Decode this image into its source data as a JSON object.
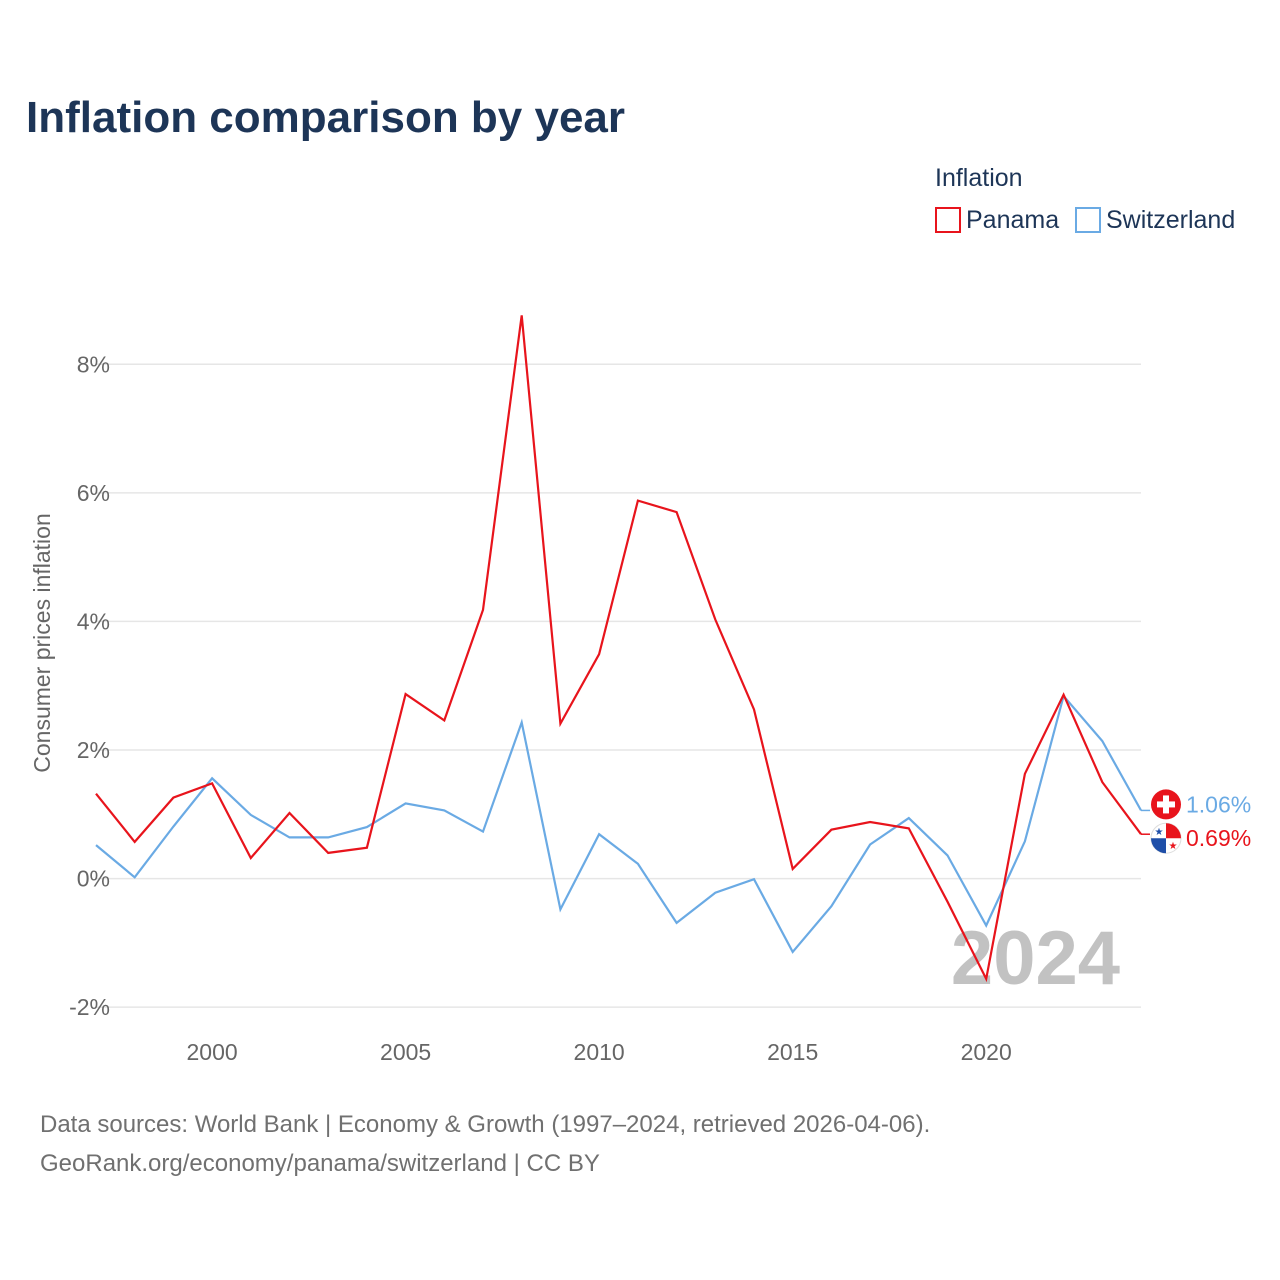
{
  "chart_data": {
    "type": "line",
    "title": "Inflation comparison by year",
    "legend": {
      "title": "Inflation",
      "position": "top-right",
      "items": [
        {
          "name": "Panama",
          "color": "#e8141c"
        },
        {
          "name": "Switzerland",
          "color": "#6aaae4"
        }
      ]
    },
    "ylabel": "Consumer prices inflation",
    "xlabel": "",
    "xlim": [
      1997,
      2024
    ],
    "ylim": [
      -2.2,
      9.0
    ],
    "x_ticks": [
      2000,
      2005,
      2010,
      2015,
      2020
    ],
    "x_tick_labels": [
      "2000",
      "2005",
      "2010",
      "2015",
      "2020"
    ],
    "y_ticks": [
      -2,
      0,
      2,
      4,
      6,
      8
    ],
    "y_tick_labels": [
      "-2%",
      "0%",
      "2%",
      "4%",
      "6%",
      "8%"
    ],
    "watermark_year": "2024",
    "x": [
      1997,
      1998,
      1999,
      2000,
      2001,
      2002,
      2003,
      2004,
      2005,
      2006,
      2007,
      2008,
      2009,
      2010,
      2011,
      2012,
      2013,
      2014,
      2015,
      2016,
      2017,
      2018,
      2019,
      2020,
      2021,
      2022,
      2023,
      2024
    ],
    "series": [
      {
        "name": "Panama",
        "color": "#e8141c",
        "end_label": "0.69%",
        "values": [
          1.32,
          0.57,
          1.26,
          1.48,
          0.32,
          1.02,
          0.4,
          0.48,
          2.87,
          2.46,
          4.18,
          8.76,
          2.41,
          3.49,
          5.88,
          5.7,
          4.03,
          2.63,
          0.15,
          0.76,
          0.88,
          0.78,
          -0.36,
          -1.56,
          1.63,
          2.86,
          1.5,
          0.69
        ]
      },
      {
        "name": "Switzerland",
        "color": "#6aaae4",
        "end_label": "1.06%",
        "values": [
          0.52,
          0.02,
          0.81,
          1.56,
          0.99,
          0.64,
          0.64,
          0.8,
          1.17,
          1.06,
          0.73,
          2.43,
          -0.48,
          0.69,
          0.23,
          -0.69,
          -0.22,
          -0.01,
          -1.14,
          -0.43,
          0.53,
          0.94,
          0.36,
          -0.73,
          0.58,
          2.84,
          2.14,
          1.06
        ]
      }
    ]
  },
  "footer": {
    "line1": "Data sources: World Bank | Economy & Growth (1997–2024, retrieved 2026-04-06).",
    "line2": "GeoRank.org/economy/panama/switzerland | CC BY"
  }
}
